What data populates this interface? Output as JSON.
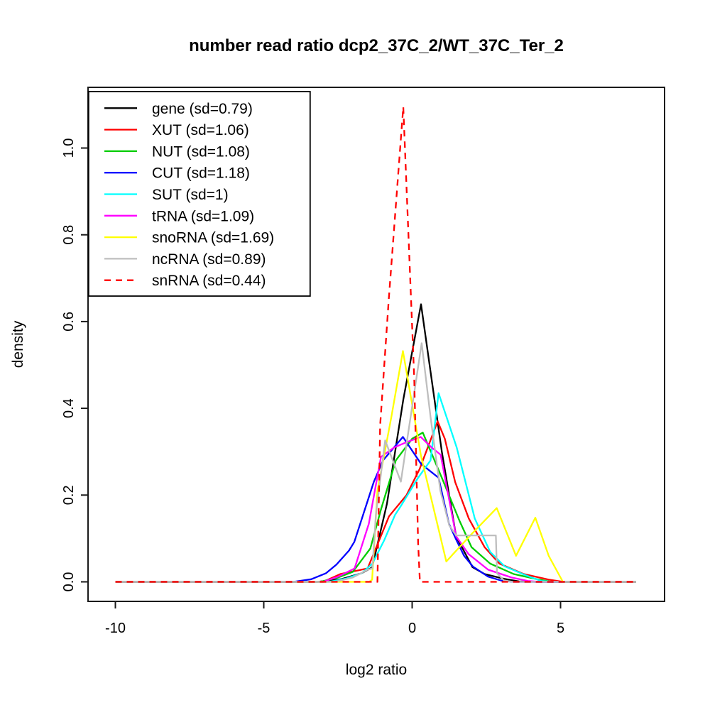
{
  "title": "number read ratio dcp2_37C_2/WT_37C_Ter_2",
  "chart_data": {
    "type": "line",
    "title": "number read ratio dcp2_37C_2/WT_37C_Ter_2",
    "xlabel": "log2 ratio",
    "ylabel": "density",
    "grid": false,
    "legend_position": "topleft",
    "xlim": [
      -10.9,
      8.5
    ],
    "ylim": [
      -0.045,
      1.14
    ],
    "x_ticks": [
      {
        "v": -10,
        "label": "-10"
      },
      {
        "v": -5,
        "label": "-5"
      },
      {
        "v": 0,
        "label": "0"
      },
      {
        "v": 5,
        "label": "5"
      }
    ],
    "y_ticks": [
      {
        "v": 0.0,
        "label": "0.0"
      },
      {
        "v": 0.2,
        "label": "0.2"
      },
      {
        "v": 0.4,
        "label": "0.4"
      },
      {
        "v": 0.6,
        "label": "0.6"
      },
      {
        "v": 0.8,
        "label": "0.8"
      },
      {
        "v": 1.0,
        "label": "1.0"
      }
    ],
    "series": [
      {
        "name": "gene",
        "label": "gene (sd=0.79)",
        "color": "#000000",
        "dashed": false,
        "points": [
          [
            -10,
            0
          ],
          [
            -3.2,
            0
          ],
          [
            -2.4,
            0.006
          ],
          [
            -1.7,
            0.02
          ],
          [
            -1.35,
            0.033
          ],
          [
            -0.85,
            0.18
          ],
          [
            -0.3,
            0.42
          ],
          [
            0.3,
            0.64
          ],
          [
            1.0,
            0.3
          ],
          [
            1.48,
            0.105
          ],
          [
            2.03,
            0.034
          ],
          [
            2.44,
            0.018
          ],
          [
            3.1,
            0.007
          ],
          [
            3.6,
            0.001
          ],
          [
            4.2,
            0
          ],
          [
            7.54,
            0
          ]
        ]
      },
      {
        "name": "XUT",
        "label": "XUT (sd=1.06)",
        "color": "#ff0000",
        "dashed": false,
        "points": [
          [
            -10,
            0
          ],
          [
            -3.0,
            0
          ],
          [
            -2.42,
            0.018
          ],
          [
            -1.5,
            0.031
          ],
          [
            -0.78,
            0.151
          ],
          [
            -0.19,
            0.2
          ],
          [
            0.25,
            0.26
          ],
          [
            0.86,
            0.37
          ],
          [
            1.1,
            0.33
          ],
          [
            1.45,
            0.23
          ],
          [
            1.91,
            0.146
          ],
          [
            2.44,
            0.08
          ],
          [
            2.94,
            0.042
          ],
          [
            3.76,
            0.018
          ],
          [
            4.6,
            0.005
          ],
          [
            5.1,
            0
          ],
          [
            7.54,
            0
          ]
        ]
      },
      {
        "name": "NUT",
        "label": "NUT (sd=1.08)",
        "color": "#00cd00",
        "dashed": false,
        "points": [
          [
            -10,
            0
          ],
          [
            -3.1,
            0
          ],
          [
            -2.5,
            0.01
          ],
          [
            -2.0,
            0.023
          ],
          [
            -1.41,
            0.077
          ],
          [
            -1.05,
            0.167
          ],
          [
            -0.55,
            0.28
          ],
          [
            0.0,
            0.33
          ],
          [
            0.36,
            0.344
          ],
          [
            1.0,
            0.24
          ],
          [
            1.6,
            0.14
          ],
          [
            2.0,
            0.08
          ],
          [
            2.63,
            0.042
          ],
          [
            3.42,
            0.018
          ],
          [
            4.2,
            0.006
          ],
          [
            4.7,
            0
          ],
          [
            7.54,
            0
          ]
        ]
      },
      {
        "name": "CUT",
        "label": "CUT (sd=1.18)",
        "color": "#0000ff",
        "dashed": false,
        "points": [
          [
            -10,
            0
          ],
          [
            -4.0,
            0
          ],
          [
            -3.4,
            0.006
          ],
          [
            -2.9,
            0.02
          ],
          [
            -2.55,
            0.04
          ],
          [
            -2.13,
            0.072
          ],
          [
            -1.95,
            0.092
          ],
          [
            -1.29,
            0.231
          ],
          [
            -0.98,
            0.28
          ],
          [
            -0.31,
            0.334
          ],
          [
            0.3,
            0.272
          ],
          [
            0.89,
            0.24
          ],
          [
            1.24,
            0.134
          ],
          [
            1.5,
            0.095
          ],
          [
            1.75,
            0.06
          ],
          [
            2.05,
            0.035
          ],
          [
            2.56,
            0.012
          ],
          [
            3.0,
            0.003
          ],
          [
            3.4,
            0
          ],
          [
            7.54,
            0
          ]
        ]
      },
      {
        "name": "SUT",
        "label": "SUT (sd=1)",
        "color": "#00ffff",
        "dashed": false,
        "points": [
          [
            -10,
            0
          ],
          [
            -2.8,
            0
          ],
          [
            -2.2,
            0.008
          ],
          [
            -1.7,
            0.02
          ],
          [
            -1.34,
            0.042
          ],
          [
            -0.94,
            0.096
          ],
          [
            -0.58,
            0.154
          ],
          [
            -0.38,
            0.175
          ],
          [
            0.2,
            0.24
          ],
          [
            0.62,
            0.28
          ],
          [
            0.89,
            0.435
          ],
          [
            1.5,
            0.31
          ],
          [
            2.11,
            0.146
          ],
          [
            2.63,
            0.069
          ],
          [
            3.11,
            0.036
          ],
          [
            3.83,
            0.015
          ],
          [
            4.35,
            0.002
          ],
          [
            4.8,
            0
          ],
          [
            7.54,
            0
          ]
        ]
      },
      {
        "name": "tRNA",
        "label": "tRNA (sd=1.09)",
        "color": "#ff00ff",
        "dashed": false,
        "points": [
          [
            -10,
            0
          ],
          [
            -3.0,
            0
          ],
          [
            -2.5,
            0.012
          ],
          [
            -1.94,
            0.031
          ],
          [
            -1.46,
            0.134
          ],
          [
            -1.05,
            0.288
          ],
          [
            -0.6,
            0.31
          ],
          [
            -0.19,
            0.322
          ],
          [
            0.29,
            0.334
          ],
          [
            0.65,
            0.31
          ],
          [
            0.96,
            0.293
          ],
          [
            1.48,
            0.105
          ],
          [
            1.9,
            0.064
          ],
          [
            2.56,
            0.028
          ],
          [
            3.35,
            0.01
          ],
          [
            3.9,
            0.002
          ],
          [
            4.3,
            0
          ],
          [
            7.54,
            0
          ]
        ]
      },
      {
        "name": "snoRNA",
        "label": "snoRNA (sd=1.69)",
        "color": "#ffff00",
        "dashed": false,
        "points": [
          [
            -10,
            0
          ],
          [
            -1.45,
            0
          ],
          [
            -1.35,
            0.005
          ],
          [
            -1.17,
            0.21
          ],
          [
            -0.7,
            0.38
          ],
          [
            -0.31,
            0.532
          ],
          [
            0.3,
            0.29
          ],
          [
            1.15,
            0.047
          ],
          [
            2.0,
            0.11
          ],
          [
            2.85,
            0.17
          ],
          [
            3.5,
            0.06
          ],
          [
            4.15,
            0.148
          ],
          [
            4.6,
            0.06
          ],
          [
            5.08,
            0
          ],
          [
            7.54,
            0
          ]
        ]
      },
      {
        "name": "ncRNA",
        "label": "ncRNA (sd=0.89)",
        "color": "#bebebe",
        "dashed": false,
        "points": [
          [
            -10,
            0
          ],
          [
            -2.6,
            0
          ],
          [
            -2.0,
            0.01
          ],
          [
            -1.5,
            0.028
          ],
          [
            -1.34,
            0.031
          ],
          [
            -1.22,
            0.157
          ],
          [
            -0.91,
            0.326
          ],
          [
            -0.38,
            0.231
          ],
          [
            0.32,
            0.55
          ],
          [
            0.62,
            0.38
          ],
          [
            0.95,
            0.21
          ],
          [
            1.25,
            0.13
          ],
          [
            1.48,
            0.107
          ],
          [
            2.82,
            0.107
          ],
          [
            2.86,
            0.02
          ],
          [
            3.1,
            0.003
          ],
          [
            3.4,
            0
          ],
          [
            7.54,
            0
          ]
        ]
      },
      {
        "name": "snRNA",
        "label": "snRNA (sd=0.44)",
        "color": "#ff0000",
        "dashed": true,
        "points": [
          [
            -10,
            0
          ],
          [
            -1.17,
            0
          ],
          [
            -1.08,
            0.36
          ],
          [
            -0.79,
            0.65
          ],
          [
            -0.3,
            1.095
          ],
          [
            0.07,
            0.47
          ],
          [
            0.2,
            0.09
          ],
          [
            0.26,
            0
          ],
          [
            7.54,
            0
          ]
        ]
      }
    ]
  }
}
